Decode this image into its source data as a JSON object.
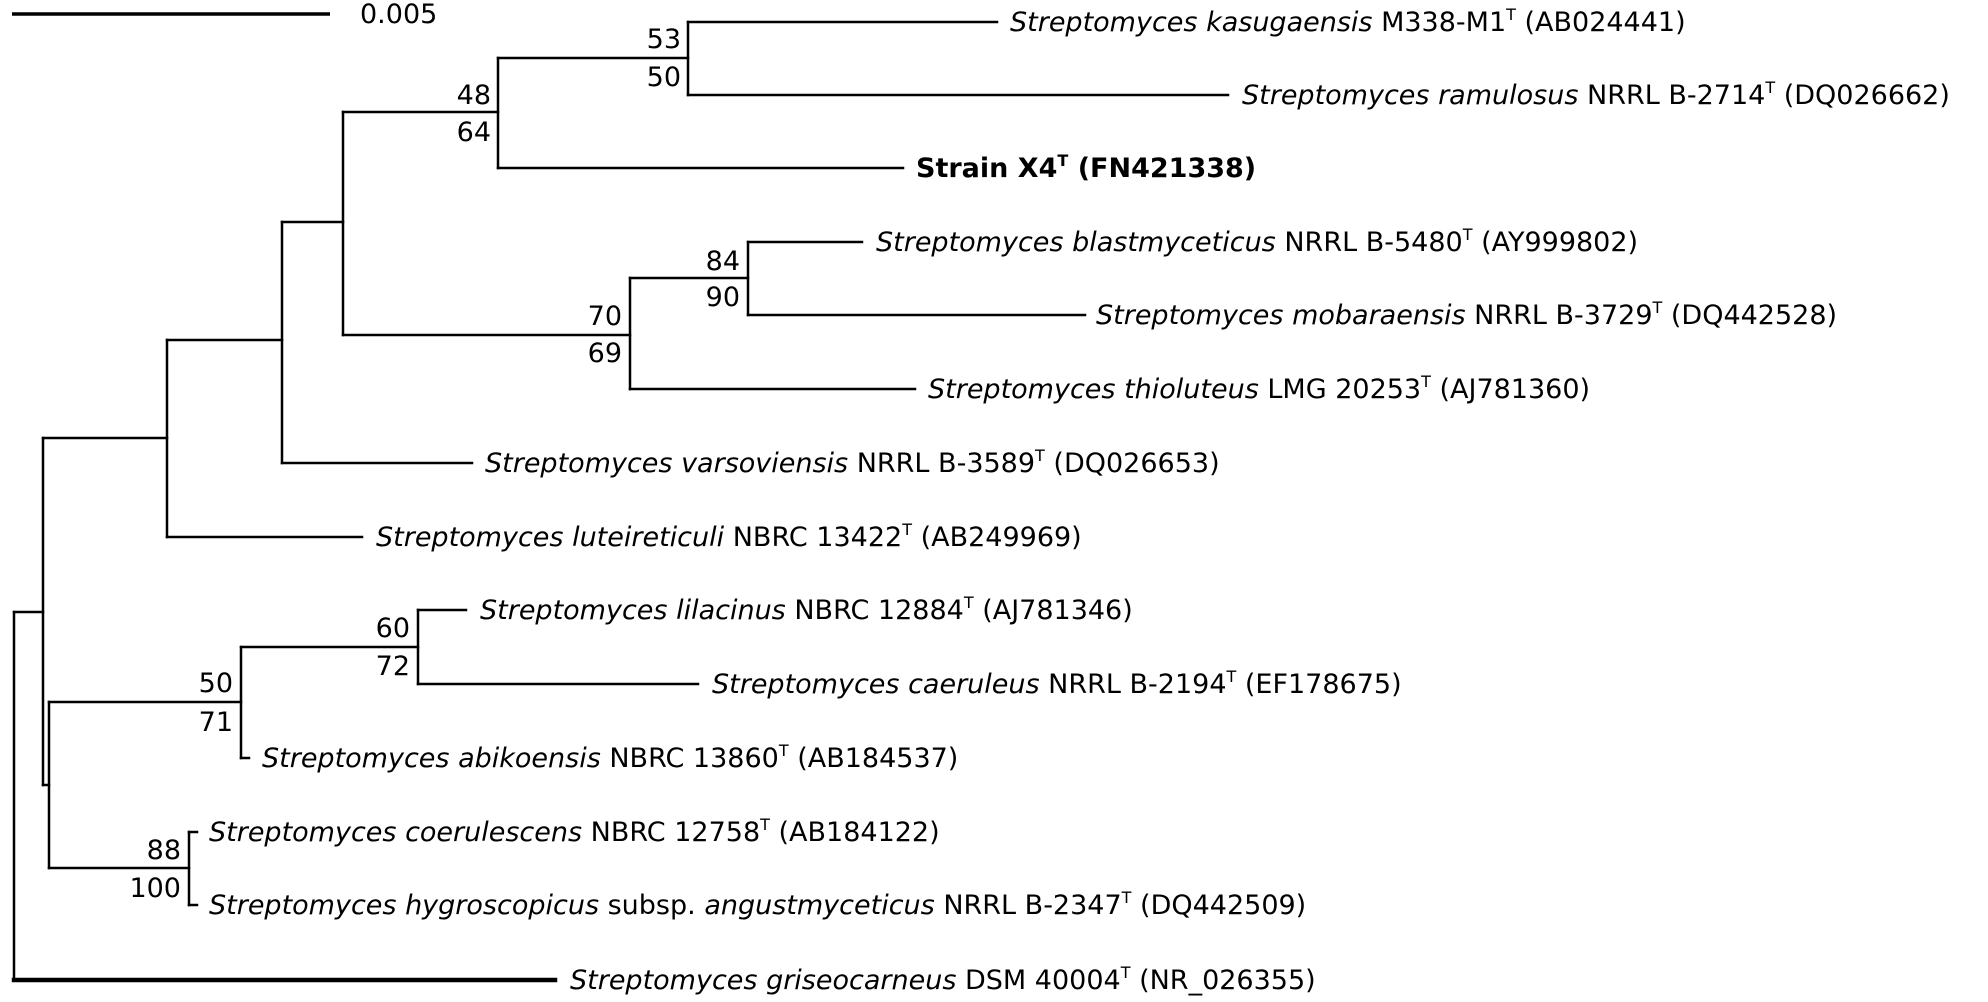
{
  "scale_bar": {
    "label": "0.005"
  },
  "taxa": [
    {
      "id": "kasugaensis",
      "genus_species": "Streptomyces kasugaensis",
      "strain": "M338-M1",
      "type_mark": "T",
      "accession": "(AB024441)",
      "bold": false
    },
    {
      "id": "ramulosus",
      "genus_species": "Streptomyces ramulosus",
      "strain": "NRRL B-2714",
      "type_mark": "T",
      "accession": "(DQ026662)",
      "bold": false
    },
    {
      "id": "x4",
      "genus_species": "",
      "strain": "Strain X4",
      "type_mark": "T",
      "accession": "(FN421338)",
      "bold": true
    },
    {
      "id": "blastmyceticus",
      "genus_species": "Streptomyces blastmyceticus",
      "strain": "NRRL B-5480",
      "type_mark": "T",
      "accession": "(AY999802)",
      "bold": false
    },
    {
      "id": "mobaraensis",
      "genus_species": "Streptomyces mobaraensis",
      "strain": "NRRL B-3729",
      "type_mark": "T",
      "accession": "(DQ442528)",
      "bold": false
    },
    {
      "id": "thioluteus",
      "genus_species": "Streptomyces thioluteus",
      "strain": "LMG 20253",
      "type_mark": "T",
      "accession": "(AJ781360)",
      "bold": false
    },
    {
      "id": "varsoviensis",
      "genus_species": "Streptomyces varsoviensis",
      "strain": "NRRL B-3589",
      "type_mark": "T",
      "accession": "(DQ026653)",
      "bold": false
    },
    {
      "id": "luteireticuli",
      "genus_species": "Streptomyces luteireticuli",
      "strain": "NBRC 13422",
      "type_mark": "T",
      "accession": "(AB249969)",
      "bold": false
    },
    {
      "id": "lilacinus",
      "genus_species": "Streptomyces lilacinus",
      "strain": "NBRC 12884",
      "type_mark": "T",
      "accession": "(AJ781346)",
      "bold": false
    },
    {
      "id": "caeruleus",
      "genus_species": "Streptomyces caeruleus",
      "strain": "NRRL B-2194",
      "type_mark": "T",
      "accession": "(EF178675)",
      "bold": false
    },
    {
      "id": "abikoensis",
      "genus_species": "Streptomyces abikoensis",
      "strain": "NBRC 13860",
      "type_mark": "T",
      "accession": "(AB184537)",
      "bold": false
    },
    {
      "id": "coerulescens",
      "genus_species": "Streptomyces coerulescens",
      "strain": "NBRC 12758",
      "type_mark": "T",
      "accession": "(AB184122)",
      "bold": false
    },
    {
      "id": "hygroscopicus",
      "genus_species": "Streptomyces hygroscopicus",
      "subsp_prefix": "subsp.",
      "subsp_name": "angustmyceticus",
      "strain": "NRRL B-2347",
      "type_mark": "T",
      "accession": "(DQ442509)",
      "bold": false
    },
    {
      "id": "griseocarneus",
      "genus_species": "Streptomyces griseocarneus",
      "strain": "DSM 40004",
      "type_mark": "T",
      "accession": "(NR_026355)",
      "bold": false
    }
  ],
  "bootstrap": [
    {
      "node": "kasugaensis-ramulosus",
      "top": "53",
      "bottom": "50"
    },
    {
      "node": "x4-clade",
      "top": "48",
      "bottom": "64"
    },
    {
      "node": "blastmyceticus-mobaraensis",
      "top": "84",
      "bottom": "90"
    },
    {
      "node": "thioluteus-clade",
      "top": "70",
      "bottom": "69"
    },
    {
      "node": "lilacinus-caeruleus",
      "top": "60",
      "bottom": "72"
    },
    {
      "node": "abikoensis-clade",
      "top": "50",
      "bottom": "71"
    },
    {
      "node": "coerulescens-hygroscopicus",
      "top": "88",
      "bottom": "100"
    }
  ]
}
